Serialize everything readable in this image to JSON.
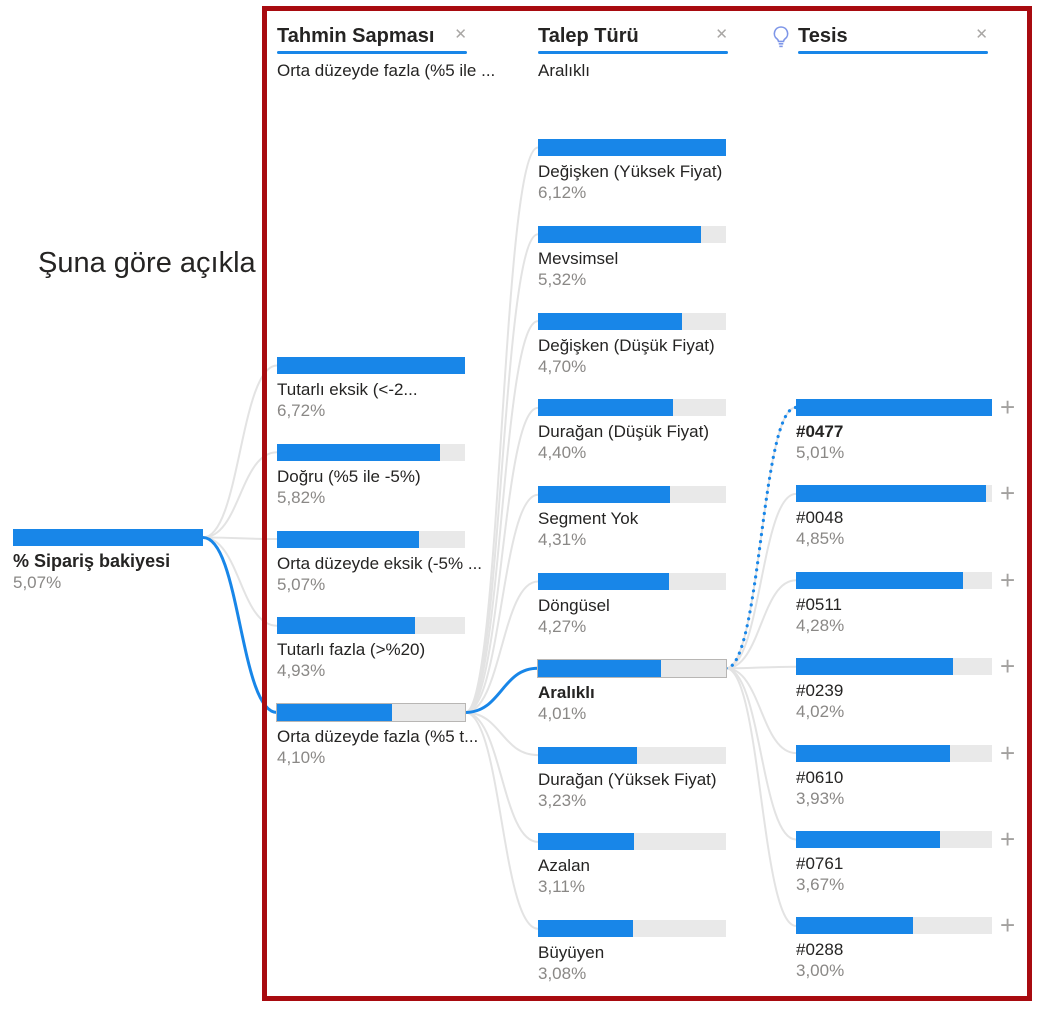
{
  "explain_by": "Şuna göre açıkla",
  "expand_icon": "+",
  "colors": {
    "bar": "#1886E8",
    "track": "#e9e9e9",
    "frame": "#a80b10",
    "value_text": "#8a8886",
    "label_text": "#252423",
    "connector_grey": "#e3e3e3",
    "connector_blue": "#1886E8",
    "lightbulb_blue": "#7e96e8"
  },
  "headers": [
    {
      "title": "Tahmin Sapması",
      "subtitle": "Orta düzeyde fazla (%5 ile ...",
      "close_icon": "✕",
      "lightbulb": false
    },
    {
      "title": "Talep Türü",
      "subtitle": "Aralıklı",
      "close_icon": "✕",
      "lightbulb": false
    },
    {
      "title": "Tesis",
      "subtitle": "",
      "close_icon": "✕",
      "lightbulb": true
    }
  ],
  "chart_data": {
    "type": "bar",
    "title": "Decomposition tree: % Sipariş bakiyesi by Tahmin Sapması, Talep Türü, Tesis",
    "root": {
      "label": "% Sipariş bakiyesi",
      "value": 5.07,
      "value_label": "5,07%"
    },
    "levels": [
      {
        "field": "Tahmin Sapması",
        "items": [
          {
            "label": "Tutarlı eksik (<-2...",
            "value": 6.72,
            "value_label": "6,72%"
          },
          {
            "label": "Doğru (%5 ile -5%)",
            "value": 5.82,
            "value_label": "5,82%"
          },
          {
            "label": "Orta düzeyde eksik (-5% ...",
            "value": 5.07,
            "value_label": "5,07%"
          },
          {
            "label": "Tutarlı fazla (>%20)",
            "value": 4.93,
            "value_label": "4,93%"
          },
          {
            "label": "Orta düzeyde fazla (%5 t...",
            "value": 4.1,
            "value_label": "4,10%",
            "selected": true
          }
        ]
      },
      {
        "field": "Talep Türü",
        "items": [
          {
            "label": "Değişken (Yüksek Fiyat)",
            "value": 6.12,
            "value_label": "6,12%"
          },
          {
            "label": "Mevsimsel",
            "value": 5.32,
            "value_label": "5,32%"
          },
          {
            "label": "Değişken (Düşük Fiyat)",
            "value": 4.7,
            "value_label": "4,70%"
          },
          {
            "label": "Durağan (Düşük Fiyat)",
            "value": 4.4,
            "value_label": "4,40%"
          },
          {
            "label": "Segment Yok",
            "value": 4.31,
            "value_label": "4,31%"
          },
          {
            "label": "Döngüsel",
            "value": 4.27,
            "value_label": "4,27%"
          },
          {
            "label": "Aralıklı",
            "value": 4.01,
            "value_label": "4,01%",
            "selected": true,
            "bold": true
          },
          {
            "label": "Durağan (Yüksek Fiyat)",
            "value": 3.23,
            "value_label": "3,23%"
          },
          {
            "label": "Azalan",
            "value": 3.11,
            "value_label": "3,11%"
          },
          {
            "label": "Büyüyen",
            "value": 3.08,
            "value_label": "3,08%"
          }
        ]
      },
      {
        "field": "Tesis",
        "items": [
          {
            "label": "#0477",
            "value": 5.01,
            "value_label": "5,01%",
            "bold": true,
            "highlighted": true
          },
          {
            "label": "#0048",
            "value": 4.85,
            "value_label": "4,85%"
          },
          {
            "label": "#0511",
            "value": 4.28,
            "value_label": "4,28%"
          },
          {
            "label": "#0239",
            "value": 4.02,
            "value_label": "4,02%"
          },
          {
            "label": "#0610",
            "value": 3.93,
            "value_label": "3,93%"
          },
          {
            "label": "#0761",
            "value": 3.67,
            "value_label": "3,67%"
          },
          {
            "label": "#0288",
            "value": 3.0,
            "value_label": "3,00%"
          }
        ]
      }
    ]
  }
}
